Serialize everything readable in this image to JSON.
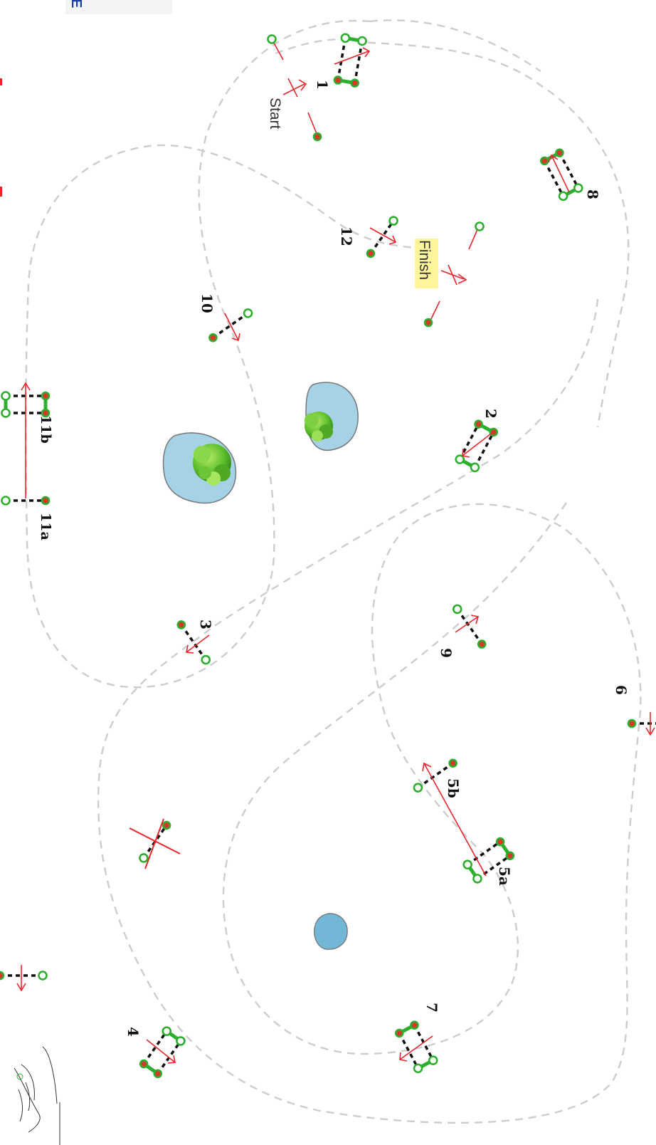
{
  "header": {
    "letter": "E"
  },
  "course": {
    "start_label": "Start",
    "finish_label": "Finish",
    "obstacle_labels": [
      "1",
      "2",
      "3",
      "4",
      "5a",
      "5b",
      "6",
      "7",
      "8",
      "9",
      "10",
      "11a",
      "11b",
      "12"
    ]
  },
  "colors": {
    "course_path": "#c8c8c8",
    "direction_arrow": "#e8262b",
    "pole": "#111111",
    "standard_green": "#2eae2e",
    "standard_red": "#d6382a",
    "water": "#a6d2e6",
    "finish_highlight": "#fff59a"
  },
  "icons": [
    "direction-arrow-icon",
    "water-pond-icon",
    "bush-icon",
    "rider-sketch-icon"
  ]
}
